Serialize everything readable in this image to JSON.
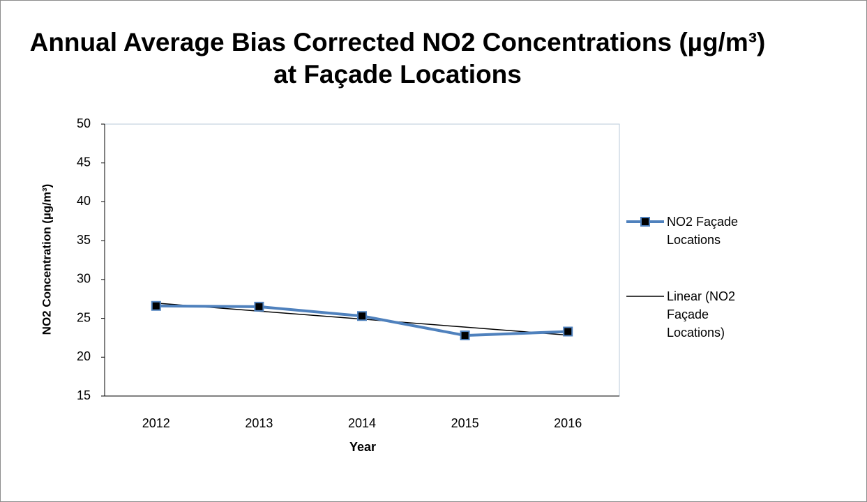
{
  "chart_data": {
    "type": "line",
    "title": "Annual Average Bias Corrected NO2 Concentrations (µg/m³) at Façade Locations",
    "x_label": "Year",
    "y_label": "NO2 Concentration (µg/m³)",
    "categories": [
      "2012",
      "2013",
      "2014",
      "2015",
      "2016"
    ],
    "series": [
      {
        "name": "NO2 Façade Locations",
        "color": "#4f81bd",
        "marker": "square",
        "values": [
          26.6,
          26.5,
          25.3,
          22.8,
          23.3
        ]
      },
      {
        "name": "Linear (NO2 Façade Locations)",
        "color": "#000000",
        "values": [
          26.96,
          25.93,
          24.9,
          23.87,
          22.84
        ]
      }
    ],
    "ylim": [
      15,
      50
    ],
    "yticks": [
      15,
      20,
      25,
      30,
      35,
      40,
      45,
      50
    ],
    "legend": "right"
  }
}
